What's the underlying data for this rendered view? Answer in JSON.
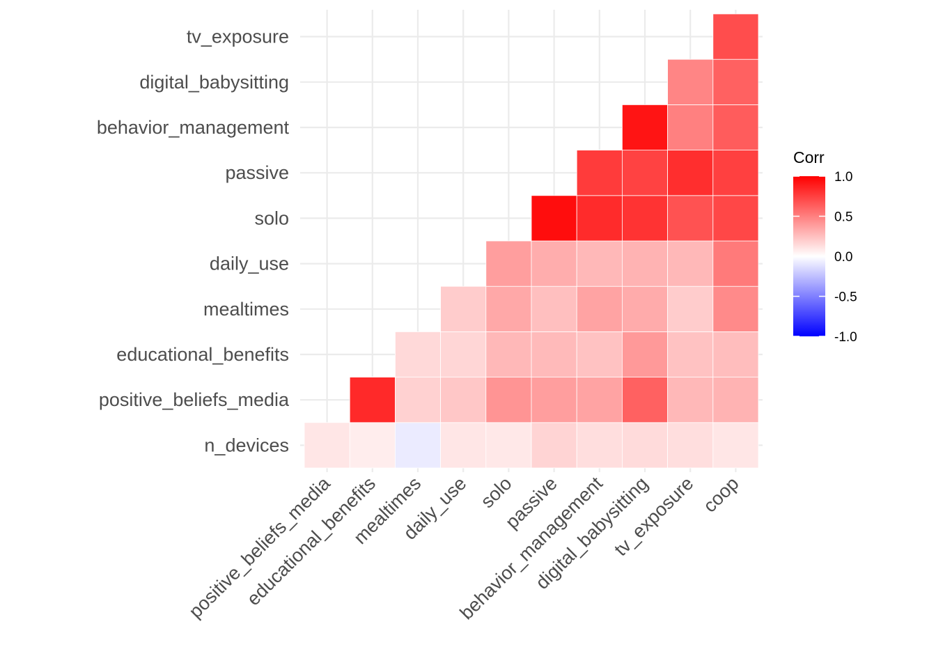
{
  "chart_data": {
    "type": "heatmap",
    "x_categories": [
      "positive_beliefs_media",
      "educational_benefits",
      "mealtimes",
      "daily_use",
      "solo",
      "passive",
      "behavior_management",
      "digital_babysitting",
      "tv_exposure",
      "coop"
    ],
    "y_categories": [
      "n_devices",
      "positive_beliefs_media",
      "educational_benefits",
      "mealtimes",
      "daily_use",
      "solo",
      "passive",
      "behavior_management",
      "digital_babysitting",
      "tv_exposure"
    ],
    "cells": [
      {
        "x": "positive_beliefs_media",
        "y": "n_devices",
        "value": 0.1
      },
      {
        "x": "educational_benefits",
        "y": "n_devices",
        "value": 0.07
      },
      {
        "x": "mealtimes",
        "y": "n_devices",
        "value": -0.08
      },
      {
        "x": "daily_use",
        "y": "n_devices",
        "value": 0.1
      },
      {
        "x": "solo",
        "y": "n_devices",
        "value": 0.09
      },
      {
        "x": "passive",
        "y": "n_devices",
        "value": 0.17
      },
      {
        "x": "behavior_management",
        "y": "n_devices",
        "value": 0.13
      },
      {
        "x": "digital_babysitting",
        "y": "n_devices",
        "value": 0.14
      },
      {
        "x": "tv_exposure",
        "y": "n_devices",
        "value": 0.13
      },
      {
        "x": "coop",
        "y": "n_devices",
        "value": 0.1
      },
      {
        "x": "educational_benefits",
        "y": "positive_beliefs_media",
        "value": 0.84
      },
      {
        "x": "mealtimes",
        "y": "positive_beliefs_media",
        "value": 0.18
      },
      {
        "x": "daily_use",
        "y": "positive_beliefs_media",
        "value": 0.22
      },
      {
        "x": "solo",
        "y": "positive_beliefs_media",
        "value": 0.42
      },
      {
        "x": "passive",
        "y": "positive_beliefs_media",
        "value": 0.38
      },
      {
        "x": "behavior_management",
        "y": "positive_beliefs_media",
        "value": 0.36
      },
      {
        "x": "digital_babysitting",
        "y": "positive_beliefs_media",
        "value": 0.62
      },
      {
        "x": "tv_exposure",
        "y": "positive_beliefs_media",
        "value": 0.28
      },
      {
        "x": "coop",
        "y": "positive_beliefs_media",
        "value": 0.3
      },
      {
        "x": "mealtimes",
        "y": "educational_benefits",
        "value": 0.15
      },
      {
        "x": "daily_use",
        "y": "educational_benefits",
        "value": 0.16
      },
      {
        "x": "solo",
        "y": "educational_benefits",
        "value": 0.28
      },
      {
        "x": "passive",
        "y": "educational_benefits",
        "value": 0.27
      },
      {
        "x": "behavior_management",
        "y": "educational_benefits",
        "value": 0.24
      },
      {
        "x": "digital_babysitting",
        "y": "educational_benefits",
        "value": 0.4
      },
      {
        "x": "tv_exposure",
        "y": "educational_benefits",
        "value": 0.24
      },
      {
        "x": "coop",
        "y": "educational_benefits",
        "value": 0.26
      },
      {
        "x": "daily_use",
        "y": "mealtimes",
        "value": 0.2
      },
      {
        "x": "solo",
        "y": "mealtimes",
        "value": 0.34
      },
      {
        "x": "passive",
        "y": "mealtimes",
        "value": 0.25
      },
      {
        "x": "behavior_management",
        "y": "mealtimes",
        "value": 0.36
      },
      {
        "x": "digital_babysitting",
        "y": "mealtimes",
        "value": 0.33
      },
      {
        "x": "tv_exposure",
        "y": "mealtimes",
        "value": 0.2
      },
      {
        "x": "coop",
        "y": "mealtimes",
        "value": 0.46
      },
      {
        "x": "solo",
        "y": "daily_use",
        "value": 0.38
      },
      {
        "x": "passive",
        "y": "daily_use",
        "value": 0.32
      },
      {
        "x": "behavior_management",
        "y": "daily_use",
        "value": 0.28
      },
      {
        "x": "digital_babysitting",
        "y": "daily_use",
        "value": 0.3
      },
      {
        "x": "tv_exposure",
        "y": "daily_use",
        "value": 0.28
      },
      {
        "x": "coop",
        "y": "daily_use",
        "value": 0.52
      },
      {
        "x": "passive",
        "y": "solo",
        "value": 0.95
      },
      {
        "x": "behavior_management",
        "y": "solo",
        "value": 0.83
      },
      {
        "x": "digital_babysitting",
        "y": "solo",
        "value": 0.8
      },
      {
        "x": "tv_exposure",
        "y": "solo",
        "value": 0.68
      },
      {
        "x": "coop",
        "y": "solo",
        "value": 0.72
      },
      {
        "x": "behavior_management",
        "y": "passive",
        "value": 0.77
      },
      {
        "x": "digital_babysitting",
        "y": "passive",
        "value": 0.74
      },
      {
        "x": "tv_exposure",
        "y": "passive",
        "value": 0.82
      },
      {
        "x": "coop",
        "y": "passive",
        "value": 0.75
      },
      {
        "x": "digital_babysitting",
        "y": "behavior_management",
        "value": 0.92
      },
      {
        "x": "tv_exposure",
        "y": "behavior_management",
        "value": 0.5
      },
      {
        "x": "coop",
        "y": "behavior_management",
        "value": 0.64
      },
      {
        "x": "tv_exposure",
        "y": "digital_babysitting",
        "value": 0.48
      },
      {
        "x": "coop",
        "y": "digital_babysitting",
        "value": 0.62
      },
      {
        "x": "coop",
        "y": "tv_exposure",
        "value": 0.7
      }
    ],
    "color_scale": {
      "low": "#0000FF",
      "mid": "#FFFFFF",
      "high": "#FF0000",
      "limits": [
        -1,
        1
      ]
    },
    "legend": {
      "title": "Corr",
      "ticks": [
        "1.0",
        "0.5",
        "0.0",
        "-0.5",
        "-1.0"
      ],
      "placement": "right"
    },
    "grid": true,
    "title": "",
    "xlabel": "",
    "ylabel": ""
  }
}
